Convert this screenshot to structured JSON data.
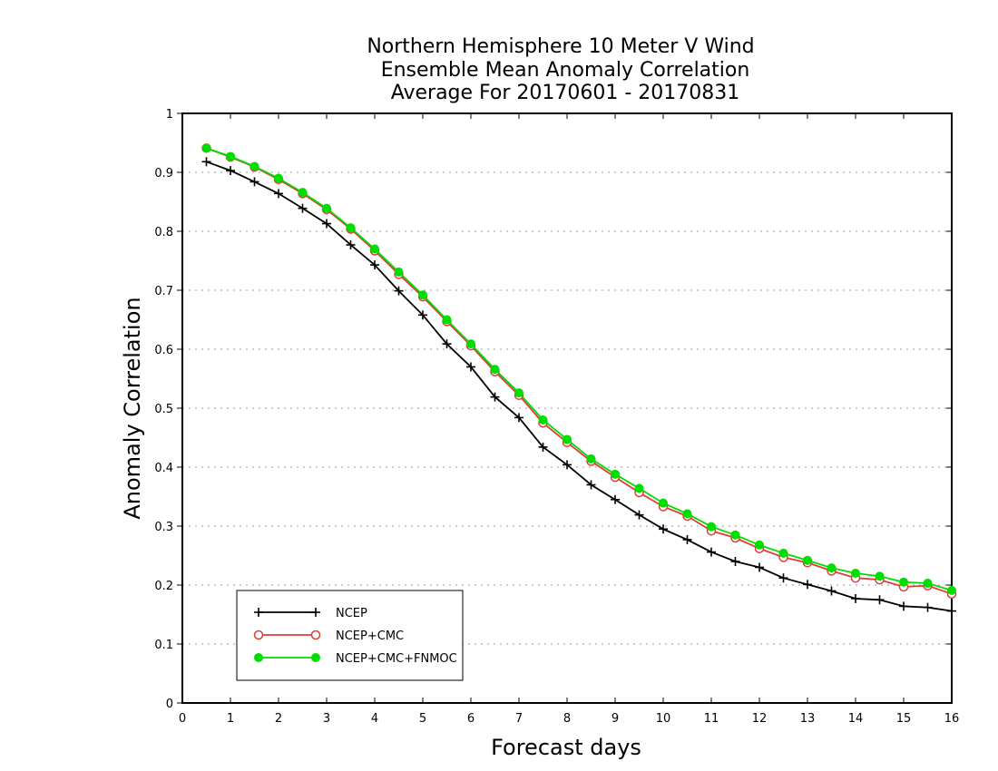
{
  "chart_data": {
    "type": "line",
    "title_lines": [
      "Northern Hemisphere 10 Meter V Wind",
      "Ensemble Mean Anomaly Correlation",
      "Average For 20170601 - 20170831"
    ],
    "xlabel": "Forecast days",
    "ylabel": "Anomaly Correlation",
    "xlim": [
      0,
      16
    ],
    "ylim": [
      0,
      1
    ],
    "x_ticks": [
      "0",
      "1",
      "2",
      "3",
      "4",
      "5",
      "6",
      "7",
      "8",
      "9",
      "10",
      "11",
      "12",
      "13",
      "14",
      "15",
      "16"
    ],
    "y_ticks": [
      "0",
      "0.1",
      "0.2",
      "0.3",
      "0.4",
      "0.5",
      "0.6",
      "0.7",
      "0.8",
      "0.9",
      "1"
    ],
    "grid": "dotted horizontal",
    "legend_position": "bottom-left",
    "x": [
      0.5,
      1,
      1.5,
      2,
      2.5,
      3,
      3.5,
      4,
      4.5,
      5,
      5.5,
      6,
      6.5,
      7,
      7.5,
      8,
      8.5,
      9,
      9.5,
      10,
      10.5,
      11,
      11.5,
      12,
      12.5,
      13,
      13.5,
      14,
      14.5,
      15,
      15.5,
      16
    ],
    "series": [
      {
        "name": "NCEP",
        "color": "#000000",
        "marker": "plus",
        "values": [
          0.918,
          0.903,
          0.884,
          0.864,
          0.839,
          0.813,
          0.777,
          0.743,
          0.699,
          0.658,
          0.609,
          0.57,
          0.519,
          0.484,
          0.434,
          0.404,
          0.37,
          0.345,
          0.319,
          0.295,
          0.277,
          0.256,
          0.24,
          0.23,
          0.212,
          0.201,
          0.19,
          0.177,
          0.175,
          0.164,
          0.162,
          0.156
        ]
      },
      {
        "name": "NCEP+CMC",
        "color": "#e03a3a",
        "marker": "open-circle",
        "values": [
          0.941,
          0.926,
          0.909,
          0.888,
          0.864,
          0.837,
          0.804,
          0.767,
          0.727,
          0.689,
          0.647,
          0.606,
          0.562,
          0.522,
          0.475,
          0.442,
          0.41,
          0.383,
          0.357,
          0.333,
          0.317,
          0.292,
          0.28,
          0.262,
          0.247,
          0.238,
          0.224,
          0.212,
          0.209,
          0.197,
          0.199,
          0.185
        ]
      },
      {
        "name": "NCEP+CMC+FNMOC",
        "color": "#00dd00",
        "marker": "filled-circle",
        "values": [
          0.941,
          0.927,
          0.91,
          0.89,
          0.866,
          0.839,
          0.806,
          0.77,
          0.731,
          0.692,
          0.65,
          0.609,
          0.566,
          0.526,
          0.48,
          0.447,
          0.414,
          0.388,
          0.364,
          0.339,
          0.321,
          0.299,
          0.285,
          0.268,
          0.254,
          0.242,
          0.229,
          0.22,
          0.215,
          0.205,
          0.203,
          0.191
        ]
      }
    ]
  }
}
